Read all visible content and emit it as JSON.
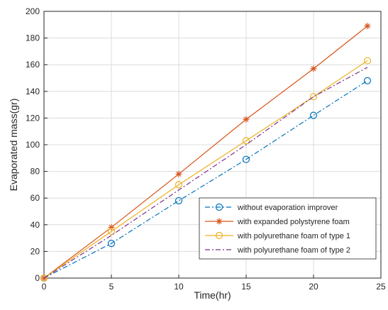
{
  "chart_data": {
    "type": "line",
    "xlabel": "Time(hr)",
    "ylabel": "Evaporated mass(gr)",
    "xlim": [
      0,
      25
    ],
    "ylim": [
      0,
      200
    ],
    "xticks": [
      0,
      5,
      10,
      15,
      20,
      25
    ],
    "yticks": [
      0,
      20,
      40,
      60,
      80,
      100,
      120,
      140,
      160,
      180,
      200
    ],
    "grid": true,
    "legend_position": "bottom-right",
    "series": [
      {
        "name": "without evaporation improver",
        "color": "#0072BD",
        "line_style": "dash-dot",
        "marker": "circle",
        "x": [
          0,
          5,
          10,
          15,
          20,
          24
        ],
        "y": [
          0,
          26,
          58,
          89,
          122,
          148
        ]
      },
      {
        "name": "with expanded polystyrene foam",
        "color": "#D95319",
        "line_style": "solid",
        "marker": "asterisk",
        "x": [
          0,
          5,
          10,
          15,
          20,
          24
        ],
        "y": [
          0,
          38,
          78,
          119,
          157,
          189
        ]
      },
      {
        "name": "with polyurethane foam of type 1",
        "color": "#EDB120",
        "line_style": "solid",
        "marker": "circle",
        "x": [
          0,
          5,
          10,
          15,
          20,
          24
        ],
        "y": [
          0,
          35,
          70,
          103,
          136,
          163
        ]
      },
      {
        "name": "with polyurethane foam of type 2",
        "color": "#7E2F8E",
        "line_style": "dash-dot",
        "marker": "none",
        "x": [
          0,
          5,
          10,
          15,
          20,
          24
        ],
        "y": [
          0,
          32,
          66,
          100,
          136,
          158
        ]
      }
    ]
  }
}
